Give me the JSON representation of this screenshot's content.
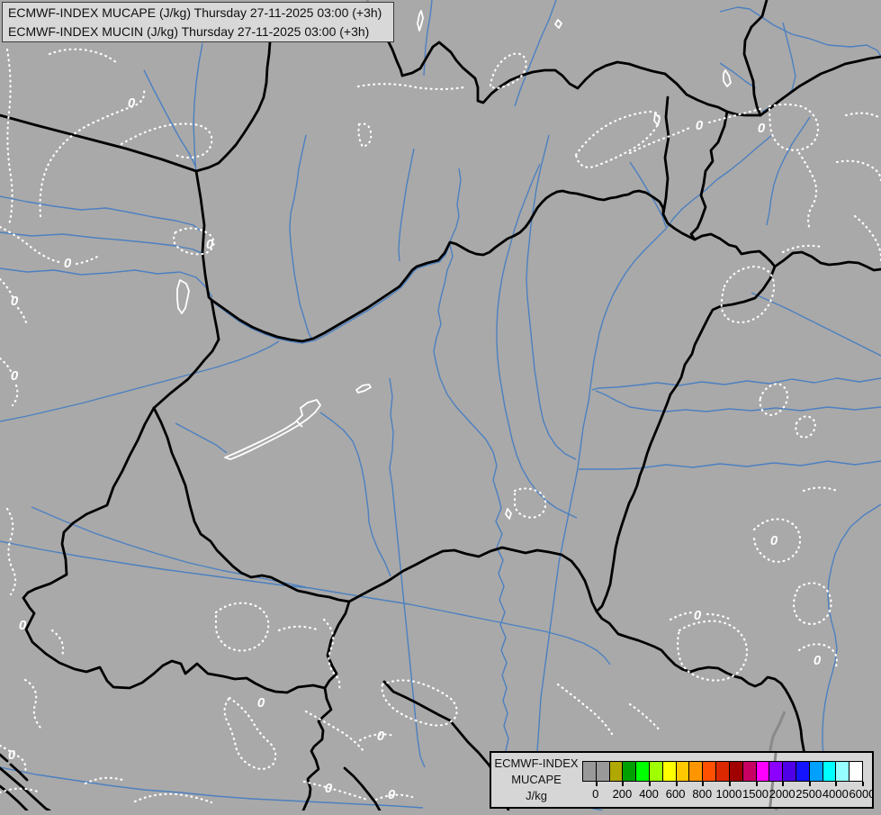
{
  "title_bar": {
    "line1": "ECMWF-INDEX MUCAPE (J/kg) Thursday 27-11-2025 03:00 (+3h)",
    "line2": "ECMWF-INDEX MUCIN (J/kg) Thursday 27-11-2025 03:00 (+3h)"
  },
  "legend": {
    "title_line1": "ECMWF-INDEX",
    "title_line2": "MUCAPE",
    "unit": "J/kg",
    "tick_labels": [
      "0",
      "200",
      "400",
      "600",
      "800",
      "1000",
      "1500",
      "2000",
      "2500",
      "4000",
      "6000"
    ],
    "cell_colors": [
      "#999999",
      "#999999",
      "#B0A800",
      "#00A000",
      "#00FF00",
      "#A0FF00",
      "#FFFF00",
      "#FFC800",
      "#FF9600",
      "#FF5000",
      "#DC2800",
      "#A00000",
      "#C80064",
      "#FF00FF",
      "#8C00FF",
      "#5000E6",
      "#1414FF",
      "#00A0FF",
      "#00FFFF",
      "#96FFFF",
      "#FFFFFF"
    ]
  },
  "map": {
    "background_color": "#A9A9A9",
    "country_border_color": "#000000",
    "secondary_border_color": "#8A8A8A",
    "river_color": "#4C80C0",
    "lake_color": "#FFFFFF",
    "contour_color": "#FFFFFF",
    "contour_label": "0",
    "contour_label_count": 16
  }
}
